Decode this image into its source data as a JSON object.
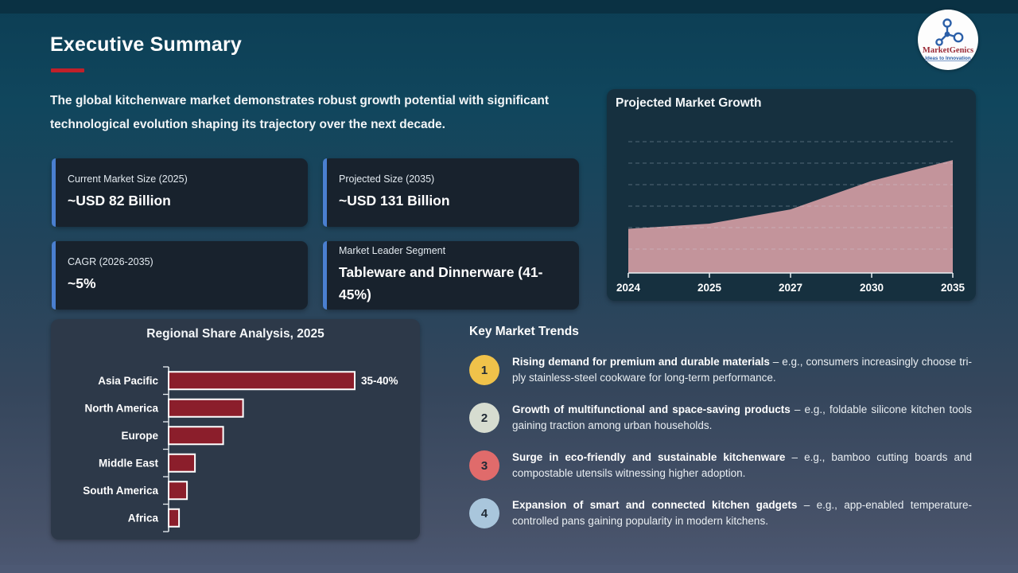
{
  "slide": {
    "title": "Executive Summary",
    "intro": "The global kitchenware market demonstrates robust growth potential with significant technological evolution shaping its trajectory over the next decade."
  },
  "logo": {
    "name": "MarketGenics",
    "tagline": "Ideas to Innovation",
    "name_color": "#9b2c38",
    "tagline_color": "#2b5fa8",
    "icon": "molecule-icon"
  },
  "stats": [
    {
      "label": "Current Market Size (2025)",
      "value": "~USD 82 Billion"
    },
    {
      "label": "Projected Size (2035)",
      "value": "~USD 131 Billion"
    },
    {
      "label": "CAGR (2026-2035)",
      "value": "~5%"
    },
    {
      "label": "Market Leader Segment",
      "value": "Tableware and Dinnerware (41-45%)"
    }
  ],
  "accent_colors": {
    "title_underline": "#c0202a",
    "stat_card_border": "#4a7fd0"
  },
  "chart_data": [
    {
      "type": "area",
      "title": "Projected Market Growth",
      "x": [
        "2024",
        "2025",
        "2027",
        "2030",
        "2035"
      ],
      "values": [
        78,
        82,
        93,
        115,
        131
      ],
      "unit": "USD Billion (approximate, inferred from slide stats)",
      "ylim": [
        44,
        158
      ],
      "grid": "dashed-horizontal",
      "legend": "none",
      "fill_color": "#c3949b"
    },
    {
      "type": "bar",
      "orientation": "horizontal",
      "title": "Regional Share Analysis, 2025",
      "categories": [
        "Asia Pacific",
        "North America",
        "Europe",
        "Middle East",
        "South America",
        "Africa"
      ],
      "values": [
        37.5,
        15,
        11,
        5.3,
        3.7,
        2.1
      ],
      "data_labels": [
        "35-40%",
        "",
        "",
        "",
        "",
        ""
      ],
      "xlim": [
        0,
        46
      ],
      "bar_color": "#8b1e2b",
      "bar_border_color": "#ffffff",
      "legend": "none"
    }
  ],
  "trends": {
    "heading": "Key Market Trends",
    "items": [
      {
        "num": "1",
        "color": "#f0c24a",
        "bold": "Rising demand for premium and durable materials",
        "rest": " – e.g., consumers increasingly choose tri-ply stainless-steel cookware for long-term performance."
      },
      {
        "num": "2",
        "color": "#d6dcd0",
        "bold": "Growth of multifunctional and space-saving products",
        "rest": " – e.g., foldable silicone kitchen tools gaining traction among urban households."
      },
      {
        "num": "3",
        "color": "#e06b6b",
        "bold": "Surge in eco-friendly and sustainable kitchenware",
        "rest": " – e.g., bamboo cutting boards and compostable utensils witnessing higher adoption."
      },
      {
        "num": "4",
        "color": "#a9c6dc",
        "bold": "Expansion of smart and connected kitchen gadgets",
        "rest": " – e.g., app-enabled temperature-controlled pans gaining popularity in modern kitchens."
      }
    ]
  }
}
